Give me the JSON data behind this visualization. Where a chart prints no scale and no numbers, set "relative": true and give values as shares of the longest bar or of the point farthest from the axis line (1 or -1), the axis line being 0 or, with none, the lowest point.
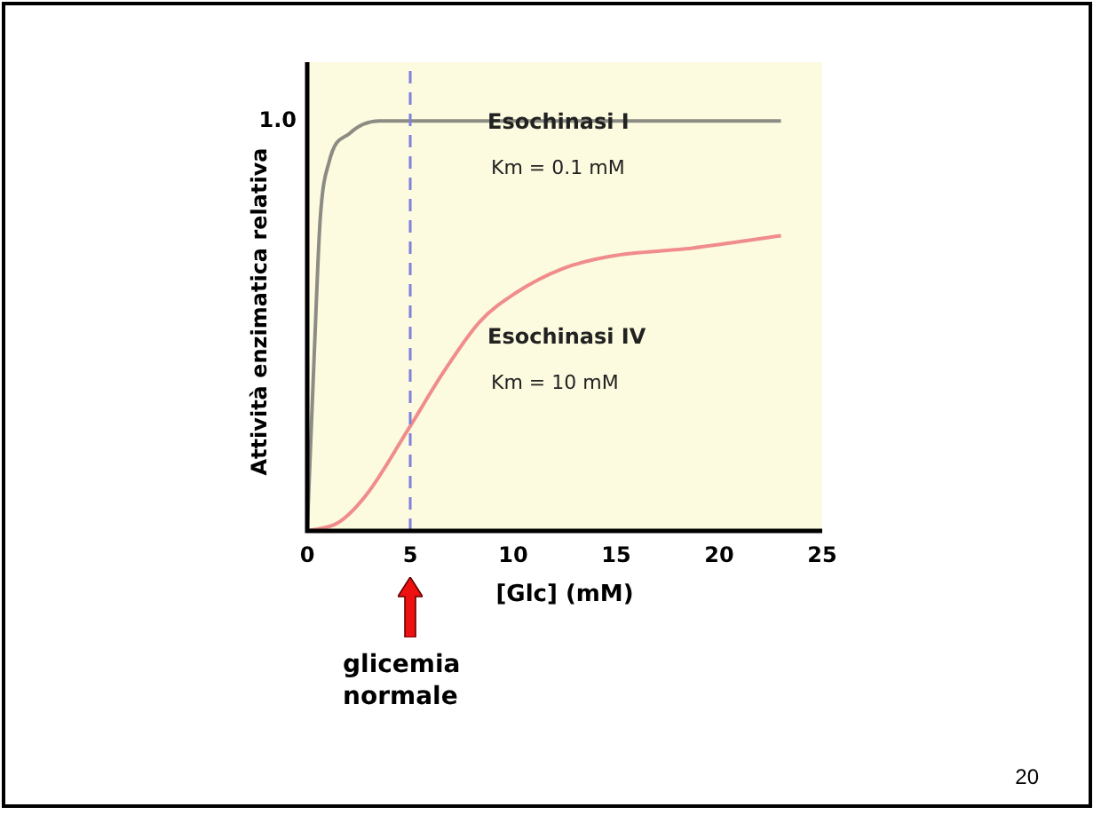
{
  "chart_data": {
    "type": "line",
    "relative": true,
    "xlabel": "[Glc] (mM)",
    "ylabel": "Attività enzimatica relativa",
    "xlim": [
      0,
      25
    ],
    "xticks": [
      0,
      5,
      10,
      15,
      20,
      25
    ],
    "grid": false,
    "legend": false,
    "marker": "none",
    "line_style": "solid",
    "series": [
      {
        "name": "Esochinasi I",
        "color": "#8c8c84",
        "x": [
          0,
          0.34,
          0.63,
          1.06,
          2.06,
          3.5,
          23
        ],
        "values": [
          0,
          0.43,
          0.76,
          0.9,
          0.97,
          1,
          1
        ]
      },
      {
        "name": "Esochinasi IV",
        "color": "#f08c8c",
        "x": [
          0,
          1.5,
          2.9,
          4.93,
          6.65,
          8.37,
          10.1,
          12.4,
          14.7,
          18.7,
          23
        ],
        "values": [
          0,
          0.02,
          0.09,
          0.25,
          0.39,
          0.51,
          0.58,
          0.64,
          0.67,
          0.69,
          0.72
        ]
      }
    ],
    "ref_lines": [
      {
        "axis": "x",
        "value": 5,
        "color": "#8080dd",
        "line_style": "dashed"
      }
    ],
    "annotations": [
      "Km = 0.1 mM",
      "Km = 10 mM",
      "1.0",
      "glicemia normale",
      "20"
    ]
  }
}
